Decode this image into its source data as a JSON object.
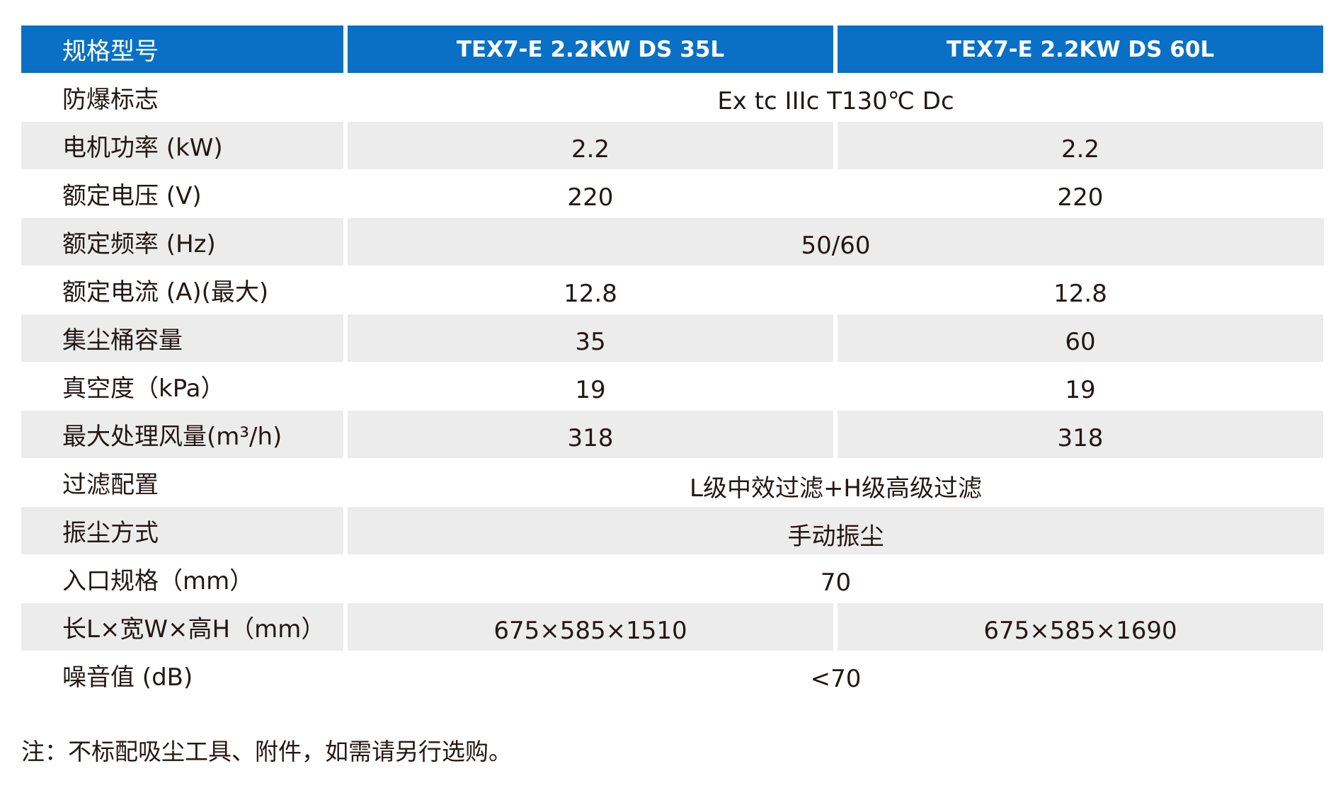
{
  "table": {
    "header": {
      "label": "规格型号",
      "columns": [
        "TEX7-E 2.2KW DS 35L",
        "TEX7-E 2.2KW DS 60L"
      ]
    },
    "rows": [
      {
        "label": "防爆标志",
        "merged": true,
        "value": "Ex tc IIIc T130℃ Dc"
      },
      {
        "label": "电机功率 (kW)",
        "merged": false,
        "values": [
          "2.2",
          "2.2"
        ]
      },
      {
        "label": "额定电压 (V)",
        "merged": false,
        "values": [
          "220",
          "220"
        ]
      },
      {
        "label": "额定频率 (Hz)",
        "merged": true,
        "value": "50/60"
      },
      {
        "label": "额定电流 (A)(最大)",
        "merged": false,
        "values": [
          "12.8",
          "12.8"
        ]
      },
      {
        "label": "集尘桶容量",
        "merged": false,
        "values": [
          "35",
          "60"
        ]
      },
      {
        "label": "真空度（kPa）",
        "merged": false,
        "values": [
          "19",
          "19"
        ]
      },
      {
        "label": "最大处理风量(m³/h)",
        "merged": false,
        "values": [
          "318",
          "318"
        ]
      },
      {
        "label": "过滤配置",
        "merged": true,
        "value": "L级中效过滤+H级高级过滤"
      },
      {
        "label": "振尘方式",
        "merged": true,
        "value": "手动振尘"
      },
      {
        "label": "入口规格（mm）",
        "merged": true,
        "value": "70"
      },
      {
        "label": "长L×宽W×高H（mm）",
        "merged": false,
        "values": [
          "675×585×1510",
          "675×585×1690"
        ]
      },
      {
        "label": "噪音值 (dB)",
        "merged": true,
        "value": "<70"
      }
    ]
  },
  "footnote": "注：不标配吸尘工具、附件，如需请另行选购。",
  "colors": {
    "header_bg": "#0a70c6",
    "header_text": "#ffffff",
    "shaded_row_bg": "#ececec",
    "text": "#231815"
  }
}
